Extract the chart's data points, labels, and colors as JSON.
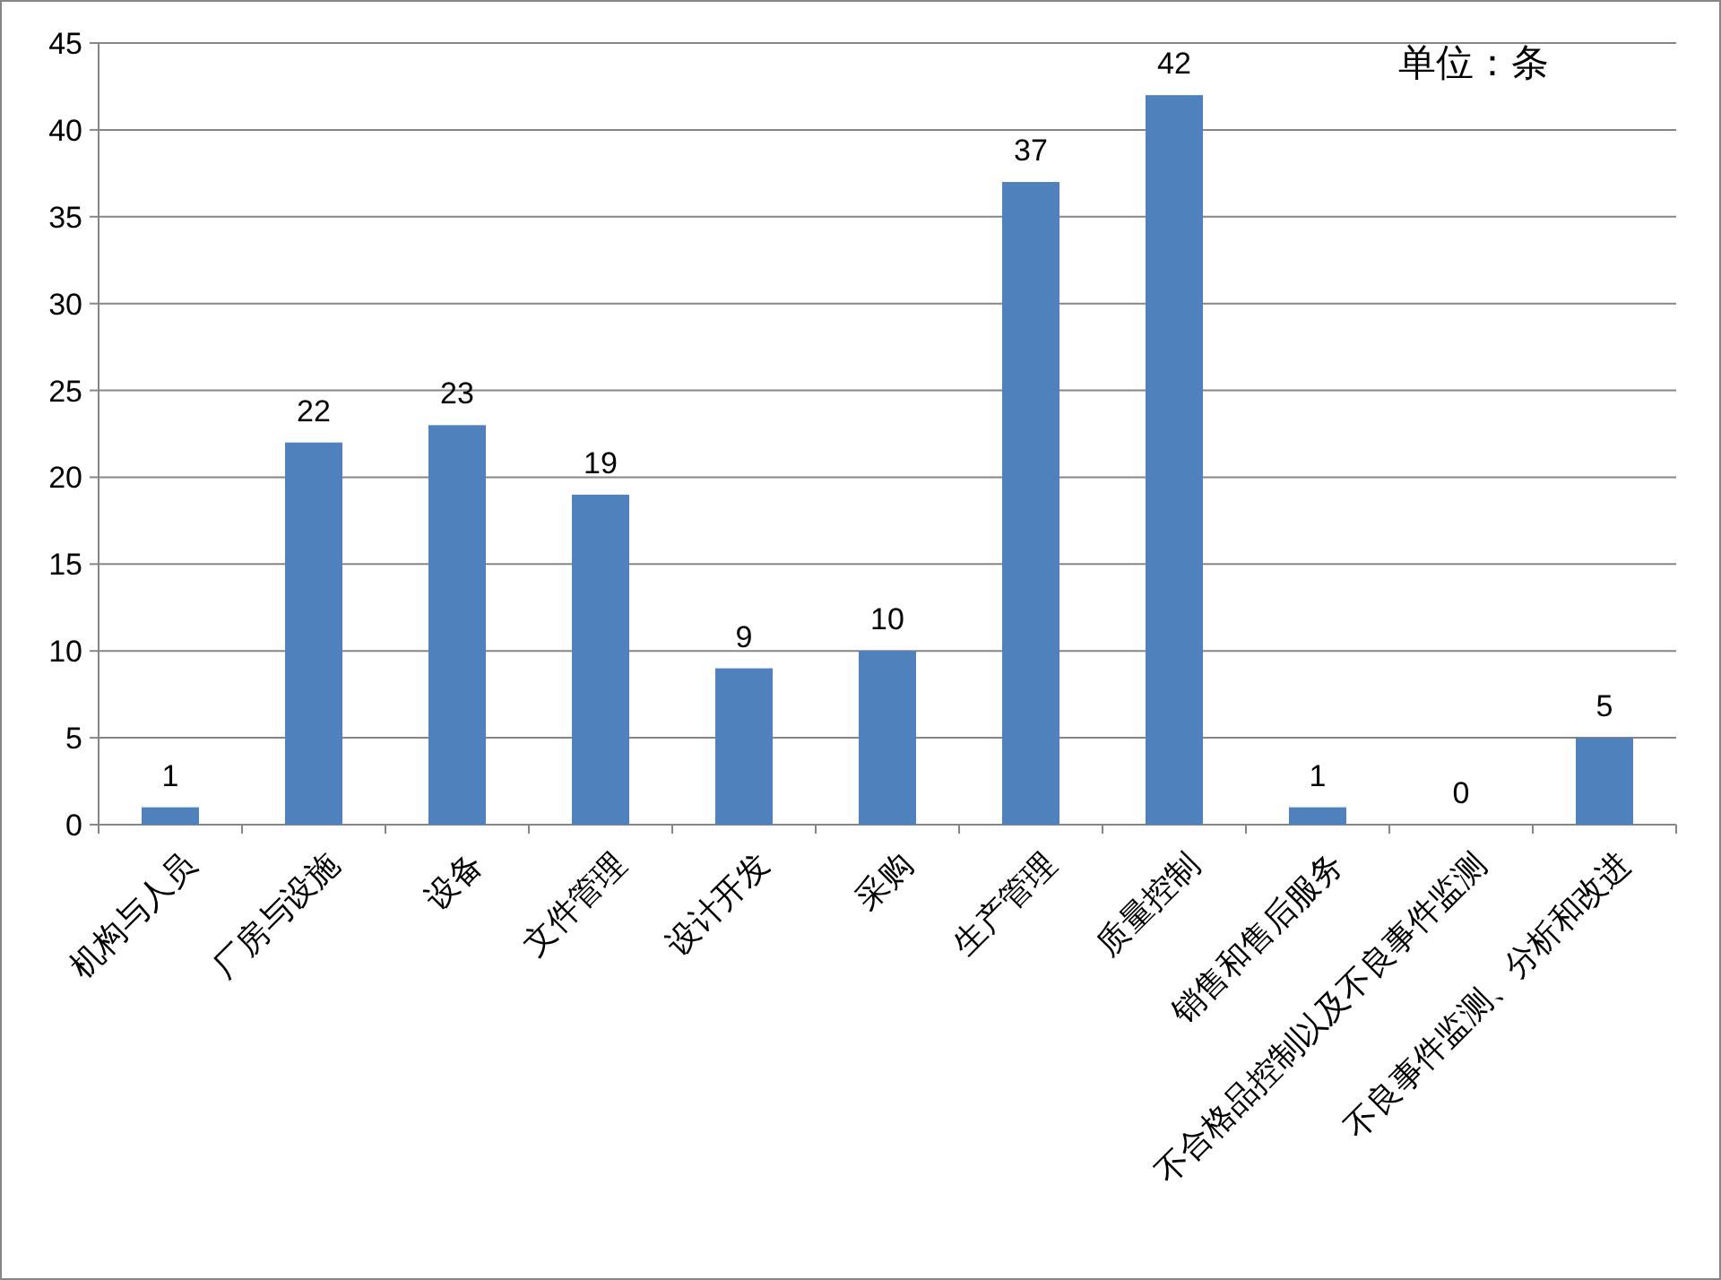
{
  "chart_data": {
    "type": "bar",
    "categories": [
      "机构与人员",
      "厂房与设施",
      "设备",
      "文件管理",
      "设计开发",
      "采购",
      "生产管理",
      "质量控制",
      "销售和售后服务",
      "不合格品控制以及不良事件监测",
      "不良事件监测、分析和改进"
    ],
    "values": [
      1,
      22,
      23,
      19,
      9,
      10,
      37,
      42,
      1,
      0,
      5
    ],
    "color": "#4f81bd",
    "ylim": [
      0,
      45
    ],
    "yticks": [
      0,
      5,
      10,
      15,
      20,
      25,
      30,
      35,
      40,
      45
    ],
    "grid": "y",
    "data_labels": true,
    "annotations": [
      "单位：条"
    ]
  }
}
